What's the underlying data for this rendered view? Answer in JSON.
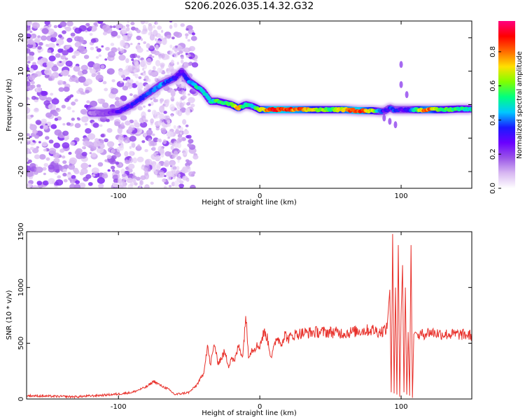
{
  "title": "S206.2026.035.14.32.G32",
  "colorbar": {
    "label": "Normalized spectral amplitude",
    "ticks": [
      "0.0",
      "0.2",
      "0.4",
      "0.6",
      "0.8"
    ],
    "tick_values": [
      0.0,
      0.2,
      0.4,
      0.6,
      0.8
    ],
    "range": [
      0,
      0.98
    ],
    "colormap": [
      "#ffffff",
      "#d8b8f2",
      "#9a55e8",
      "#6a00ff",
      "#1a1aff",
      "#00c8ff",
      "#00ff80",
      "#80ff00",
      "#ffe000",
      "#ff6a00",
      "#ff0000",
      "#ff0080"
    ]
  },
  "chart_data": [
    {
      "type": "heatmap",
      "xlabel": "Height of straight line (km)",
      "ylabel": "Frequency (Hz)",
      "xlim": [
        -165,
        150
      ],
      "ylim": [
        -25,
        25
      ],
      "xticks": [
        -100,
        0,
        100
      ],
      "yticks": [
        -20,
        -10,
        0,
        10,
        20
      ],
      "ridge": {
        "x": [
          -120,
          -110,
          -100,
          -90,
          -80,
          -70,
          -60,
          -55,
          -50,
          -45,
          -40,
          -35,
          -30,
          -25,
          -20,
          -15,
          -10,
          -5,
          0,
          10,
          20,
          30,
          40,
          50,
          60,
          70,
          80,
          85,
          88,
          92,
          95,
          100,
          105,
          110,
          115,
          120,
          130,
          140,
          150
        ],
        "y": [
          -2.5,
          -2.5,
          -2,
          0,
          3,
          6,
          8,
          10,
          7,
          5.5,
          4,
          1,
          1,
          0.5,
          0,
          -1,
          0,
          -0.5,
          -1.5,
          -1.5,
          -1.5,
          -1.5,
          -1.5,
          -1.5,
          -1.5,
          -1.8,
          -1.8,
          -2,
          -2,
          -1,
          -1.5,
          -1.5,
          -1.5,
          -1.5,
          -1.5,
          -1.5,
          -1.5,
          -1.3,
          -1.3
        ],
        "amplitude": [
          0.15,
          0.2,
          0.3,
          0.35,
          0.4,
          0.45,
          0.35,
          0.3,
          0.45,
          0.55,
          0.5,
          0.5,
          0.6,
          0.55,
          0.6,
          0.8,
          0.55,
          0.5,
          0.7,
          0.95,
          0.9,
          0.85,
          0.7,
          0.6,
          0.8,
          0.95,
          0.7,
          0.45,
          0.3,
          0.35,
          0.45,
          0.3,
          0.35,
          0.55,
          0.8,
          0.85,
          0.6,
          0.6,
          0.5
        ]
      }
    },
    {
      "type": "line",
      "xlabel": "Height of straight line (km)",
      "ylabel": "SNR (10 * v/v)",
      "xlim": [
        -165,
        150
      ],
      "ylim": [
        0,
        1500
      ],
      "xticks": [
        -100,
        0,
        100
      ],
      "yticks": [
        0,
        500,
        1000,
        1500
      ],
      "color": "#e8312b",
      "series": [
        {
          "x": [
            -165,
            -150,
            -130,
            -110,
            -100,
            -90,
            -80,
            -75,
            -70,
            -65,
            -60,
            -50,
            -45,
            -40,
            -37,
            -35,
            -32,
            -30,
            -28,
            -25,
            -22,
            -20,
            -18,
            -15,
            -12,
            -10,
            -8,
            -5,
            -3,
            0,
            3,
            5,
            8,
            10,
            12,
            15,
            18,
            20,
            25,
            30,
            40,
            50,
            60,
            70,
            80,
            85,
            88,
            90,
            92,
            93,
            94,
            95,
            96,
            97,
            98,
            99,
            100,
            101,
            102,
            103,
            104,
            105,
            106,
            107,
            108,
            109,
            110,
            111,
            112,
            115,
            120,
            130,
            140,
            150
          ],
          "y": [
            30,
            25,
            20,
            35,
            45,
            60,
            110,
            160,
            120,
            90,
            40,
            60,
            120,
            220,
            480,
            300,
            500,
            330,
            350,
            420,
            300,
            380,
            330,
            480,
            380,
            760,
            400,
            450,
            470,
            480,
            600,
            560,
            380,
            450,
            560,
            500,
            580,
            540,
            580,
            590,
            600,
            600,
            590,
            610,
            620,
            600,
            620,
            630,
            980,
            60,
            1480,
            50,
            1000,
            40,
            1380,
            20,
            760,
            1200,
            60,
            1000,
            40,
            600,
            30,
            1380,
            10,
            580,
            600,
            590,
            570,
            580,
            600,
            580,
            580,
            570
          ]
        }
      ]
    }
  ]
}
